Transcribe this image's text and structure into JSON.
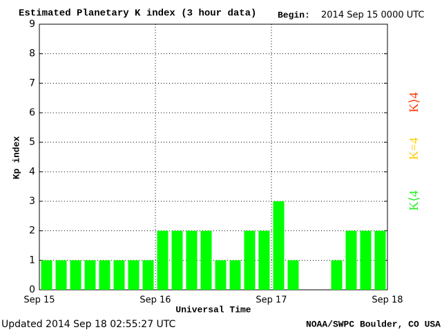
{
  "chart_data": {
    "type": "bar",
    "title": "Estimated Planetary K index (3 hour data)",
    "begin_label": "Begin:",
    "begin": "2014 Sep 15 0000 UTC",
    "ylabel": "Kp index",
    "xlabel": "Universal Time",
    "updated": "Updated 2014 Sep 18 02:55:27 UTC",
    "source": "NOAA/SWPC Boulder, CO USA",
    "xticks": [
      "Sep 15",
      "Sep 16",
      "Sep 17",
      "Sep 18"
    ],
    "values": [
      1,
      1,
      1,
      1,
      1,
      1,
      1,
      1,
      2,
      2,
      2,
      2,
      1,
      1,
      2,
      2,
      3,
      1,
      null,
      null,
      1,
      2,
      2,
      2
    ],
    "color": "#00ff00",
    "ylim": [
      0,
      9
    ],
    "yticks": [
      0,
      1,
      2,
      3,
      4,
      5,
      6,
      7,
      8,
      9
    ],
    "grid": true,
    "legend": [
      {
        "name": "K⟨4",
        "color": "#22ee22"
      },
      {
        "name": "K=4",
        "color": "#ffcc00"
      },
      {
        "name": "K⟩4",
        "color": "#ff3300"
      }
    ]
  }
}
